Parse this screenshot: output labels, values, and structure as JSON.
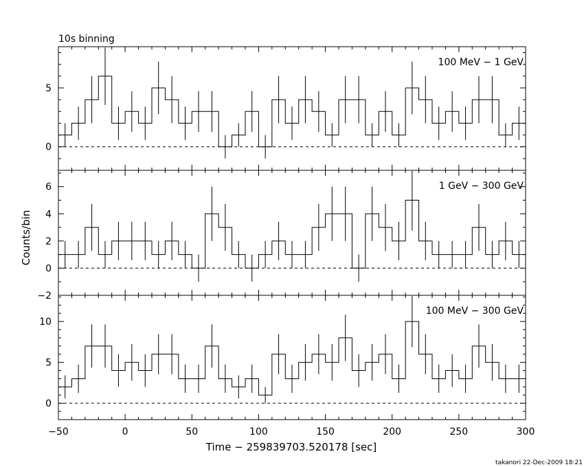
{
  "chart_data": {
    "type": "step",
    "title": "10s binning",
    "xlabel": "Time − 259839703.520178 [sec]",
    "ylabel": "Counts/bin",
    "footer": "takanori 22-Dec-2009 18:21",
    "xlim": [
      -50,
      300
    ],
    "xticks": [
      -50,
      0,
      50,
      100,
      150,
      200,
      250,
      300
    ],
    "bin_width": 10,
    "x": [
      -45,
      -35,
      -25,
      -15,
      -5,
      5,
      15,
      25,
      35,
      45,
      55,
      65,
      75,
      85,
      95,
      105,
      115,
      125,
      135,
      145,
      155,
      165,
      175,
      185,
      195,
      205,
      215,
      225,
      235,
      245,
      255,
      265,
      275,
      285,
      295
    ],
    "panels": [
      {
        "label": "100 MeV − 1 GeV",
        "ylim": [
          -2,
          8.5
        ],
        "yticks": [
          0,
          5
        ],
        "values": [
          1,
          2,
          4,
          6,
          2,
          3,
          2,
          5,
          4,
          2,
          3,
          3,
          0,
          1,
          3,
          0,
          4,
          2,
          4,
          3,
          1,
          4,
          4,
          1,
          3,
          1,
          5,
          4,
          2,
          3,
          2,
          4,
          4,
          1,
          2
        ]
      },
      {
        "label": "1 GeV − 300 GeV",
        "ylim": [
          -2,
          7.2
        ],
        "yticks": [
          -2,
          0,
          2,
          4,
          6
        ],
        "values": [
          1,
          1,
          3,
          1,
          2,
          2,
          2,
          1,
          2,
          1,
          0,
          4,
          3,
          1,
          0,
          1,
          2,
          1,
          1,
          3,
          4,
          4,
          0,
          4,
          3,
          2,
          5,
          2,
          1,
          1,
          1,
          3,
          1,
          2,
          1
        ]
      },
      {
        "label": "100 MeV − 300 GeV",
        "ylim": [
          -2,
          13.2
        ],
        "yticks": [
          0,
          5,
          10
        ],
        "values": [
          2,
          3,
          7,
          7,
          4,
          5,
          4,
          6,
          6,
          3,
          3,
          7,
          3,
          2,
          3,
          1,
          6,
          3,
          5,
          6,
          5,
          8,
          4,
          5,
          6,
          3,
          10,
          6,
          3,
          4,
          3,
          7,
          5,
          3,
          3
        ]
      }
    ]
  }
}
